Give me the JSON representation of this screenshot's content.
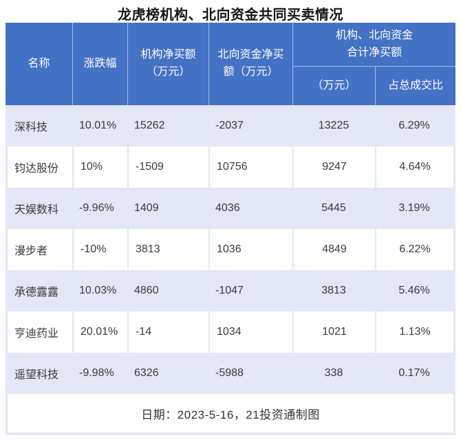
{
  "title": "龙虎榜机构、北向资金共同买卖情况",
  "colors": {
    "header_bg": "#4472C4",
    "header_text": "#FFFFFF",
    "stripe": "#E3E6F4",
    "body_text": "#3A3A3A"
  },
  "header": {
    "name": "名称",
    "change": "涨跌幅",
    "inst_line1": "机构净买额",
    "inst_line2": "（万元）",
    "north_line1": "北向资金净买",
    "north_line2": "额（万元）",
    "group_line1": "机构、北向资金",
    "group_line2": "合计净买额",
    "sub_amount": "（万元）",
    "sub_ratio": "占总成交比"
  },
  "table": {
    "rows": [
      [
        "深科技",
        "10.01%",
        "15262",
        "-2037",
        "13225",
        "6.29%"
      ],
      [
        "钧达股份",
        "10%",
        "-1509",
        "10756",
        "9247",
        "4.64%"
      ],
      [
        "天娱数科",
        "-9.96%",
        "1409",
        "4036",
        "5445",
        "3.19%"
      ],
      [
        "漫步者",
        "-10%",
        "3813",
        "1036",
        "4849",
        "6.22%"
      ],
      [
        "承德露露",
        "10.03%",
        "4860",
        "-1047",
        "3813",
        "5.46%"
      ],
      [
        "亨迪药业",
        "20.01%",
        "-14",
        "1034",
        "1021",
        "1.13%"
      ],
      [
        "遥望科技",
        "-9.98%",
        "6326",
        "-5988",
        "338",
        "0.17%"
      ]
    ],
    "footer": "日期：2023-5-16，21投资通制图"
  },
  "chart_data": {
    "type": "table",
    "title": "龙虎榜机构、北向资金共同买卖情况",
    "columns": [
      "名称",
      "涨跌幅",
      "机构净买额（万元）",
      "北向资金净买额（万元）",
      "机构、北向资金合计净买额（万元）",
      "机构、北向资金合计净买额占总成交比"
    ],
    "records": [
      {
        "name": "深科技",
        "change_pct": 10.01,
        "inst_net_wy": 15262,
        "north_net_wy": -2037,
        "combined_net_wy": 13225,
        "turnover_ratio_pct": 6.29
      },
      {
        "name": "钧达股份",
        "change_pct": 10,
        "inst_net_wy": -1509,
        "north_net_wy": 10756,
        "combined_net_wy": 9247,
        "turnover_ratio_pct": 4.64
      },
      {
        "name": "天娱数科",
        "change_pct": -9.96,
        "inst_net_wy": 1409,
        "north_net_wy": 4036,
        "combined_net_wy": 5445,
        "turnover_ratio_pct": 3.19
      },
      {
        "name": "漫步者",
        "change_pct": -10,
        "inst_net_wy": 3813,
        "north_net_wy": 1036,
        "combined_net_wy": 4849,
        "turnover_ratio_pct": 6.22
      },
      {
        "name": "承德露露",
        "change_pct": 10.03,
        "inst_net_wy": 4860,
        "north_net_wy": -1047,
        "combined_net_wy": 3813,
        "turnover_ratio_pct": 5.46
      },
      {
        "name": "亨迪药业",
        "change_pct": 20.01,
        "inst_net_wy": -14,
        "north_net_wy": 1034,
        "combined_net_wy": 1021,
        "turnover_ratio_pct": 1.13
      },
      {
        "name": "遥望科技",
        "change_pct": -9.98,
        "inst_net_wy": 6326,
        "north_net_wy": -5988,
        "combined_net_wy": 338,
        "turnover_ratio_pct": 0.17
      }
    ],
    "note": "日期：2023-5-16，21投资通制图"
  }
}
